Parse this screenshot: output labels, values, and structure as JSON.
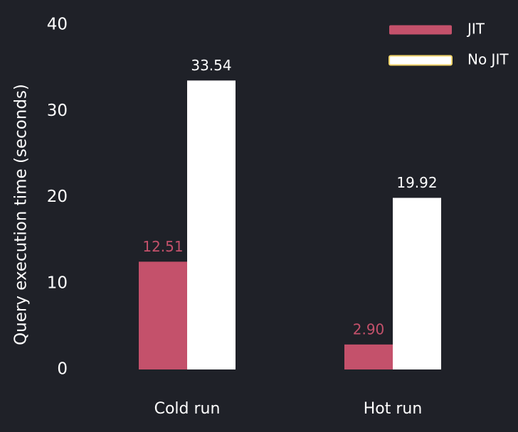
{
  "chart_data": {
    "type": "bar",
    "title": "",
    "xlabel": "",
    "ylabel": "Query execution time (seconds)",
    "categories": [
      "Cold run",
      "Hot run"
    ],
    "series": [
      {
        "name": "JIT",
        "values": [
          12.51,
          2.9
        ],
        "labels": [
          "12.51",
          "2.90"
        ],
        "color": "#c4516b"
      },
      {
        "name": "No JIT",
        "values": [
          33.54,
          19.92
        ],
        "labels": [
          "33.54",
          "19.92"
        ],
        "color": "#ffffff"
      }
    ],
    "ylim": [
      0,
      40
    ],
    "yticks": [
      0,
      10,
      20,
      30,
      40
    ],
    "grid": false,
    "legend": {
      "placement": "top-right"
    },
    "colors": {
      "background": "#1f2128",
      "text": "#ffffff",
      "legend_outline": "#f1d36a"
    }
  }
}
